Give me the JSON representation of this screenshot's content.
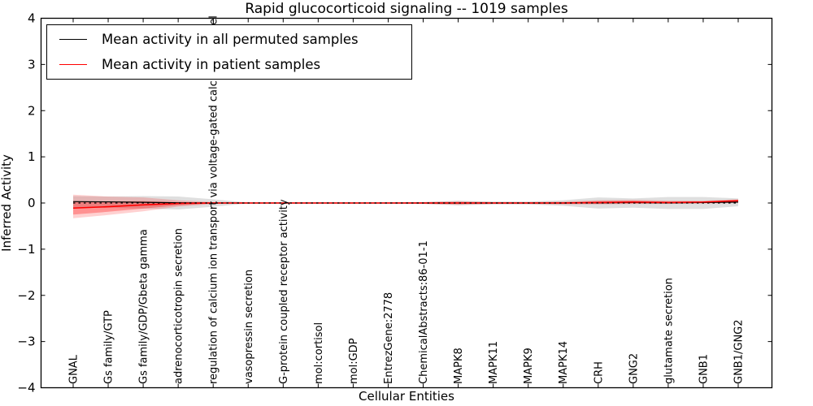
{
  "title": "Rapid glucocorticoid signaling -- 1019 samples",
  "legend": {
    "items": [
      {
        "label": "Mean activity in all permuted samples",
        "color": "#000000"
      },
      {
        "label": "Mean activity in patient samples",
        "color": "#ff0000"
      }
    ],
    "position": "upper left"
  },
  "chart_data": {
    "type": "line",
    "title": "Rapid glucocorticoid signaling -- 1019 samples",
    "xlabel": "Cellular Entities",
    "ylabel": "Inferred Activity",
    "ylim": [
      -4,
      4
    ],
    "grid": false,
    "legend_position": "upper left",
    "yticks": [
      {
        "value": -4,
        "label": "−4"
      },
      {
        "value": -3,
        "label": "−3"
      },
      {
        "value": -2,
        "label": "−2"
      },
      {
        "value": -1,
        "label": "−1"
      },
      {
        "value": 0,
        "label": "0"
      },
      {
        "value": 1,
        "label": "1"
      },
      {
        "value": 2,
        "label": "2"
      },
      {
        "value": 3,
        "label": "3"
      },
      {
        "value": 4,
        "label": "4"
      }
    ],
    "categories": [
      "GNAL",
      "Gs family/GTP",
      "Gs family/GDP/Gbeta gamma",
      "adrenocorticotropin secretion",
      "regulation of calcium ion transport via voltage-gated calcium channel",
      "vasopressin secretion",
      "G-protein coupled receptor activity",
      "mol:cortisol",
      "mol:GDP",
      "EntrezGene:2778",
      "ChemicalAbstracts:86-01-1",
      "MAPK8",
      "MAPK11",
      "MAPK9",
      "MAPK14",
      "CRH",
      "GNG2",
      "glutamate secretion",
      "GNB1",
      "GNB1/GNG2"
    ],
    "series": [
      {
        "name": "permuted-mean-line",
        "label": "Mean activity in all permuted samples",
        "color": "#000000",
        "width": 1.2,
        "values": [
          0.03,
          0.025,
          0.015,
          0.005,
          0,
          0,
          0,
          0,
          0,
          0,
          0,
          0,
          0,
          0,
          0,
          0.005,
          0.01,
          0.005,
          0.01,
          0.02
        ]
      },
      {
        "name": "patient-mean-line",
        "label": "Mean activity in patient samples",
        "color": "#ff0000",
        "width": 1.6,
        "values": [
          -0.11,
          -0.08,
          -0.04,
          -0.01,
          0,
          0,
          0,
          0,
          0,
          0,
          0,
          0,
          0,
          0,
          0,
          0.01,
          0.02,
          0.01,
          0.02,
          0.05
        ]
      }
    ],
    "bands": [
      {
        "name": "permuted-band",
        "color": "rgba(128,128,128,0.25)",
        "upper": [
          0.15,
          0.14,
          0.15,
          0.14,
          0.08,
          0.01,
          0.01,
          0.01,
          0.01,
          0.01,
          0.02,
          0.05,
          0.03,
          0.03,
          0.06,
          0.12,
          0.1,
          0.13,
          0.13,
          0.1
        ],
        "lower": [
          -0.1,
          -0.1,
          -0.12,
          -0.14,
          -0.08,
          -0.01,
          -0.01,
          -0.01,
          -0.01,
          -0.01,
          -0.02,
          -0.05,
          -0.03,
          -0.03,
          -0.06,
          -0.12,
          -0.1,
          -0.13,
          -0.13,
          -0.07
        ]
      },
      {
        "name": "patient-band-outer",
        "color": "rgba(255,0,0,0.18)",
        "upper": [
          0.18,
          0.14,
          0.12,
          0.06,
          0.02,
          0.01,
          0.01,
          0.01,
          0.01,
          0.01,
          0.02,
          0.04,
          0.02,
          0.02,
          0.03,
          0.06,
          0.07,
          0.05,
          0.05,
          0.08
        ],
        "lower": [
          -0.33,
          -0.26,
          -0.18,
          -0.08,
          -0.02,
          -0.01,
          -0.01,
          -0.01,
          -0.01,
          -0.01,
          -0.02,
          -0.04,
          -0.02,
          -0.02,
          -0.03,
          -0.03,
          -0.02,
          -0.02,
          -0.01,
          0.0
        ]
      },
      {
        "name": "patient-band-inner",
        "color": "rgba(255,0,0,0.30)",
        "upper": [
          0.04,
          0.03,
          0.04,
          0.02,
          0.01,
          0.005,
          0.005,
          0.005,
          0.005,
          0.005,
          0.01,
          0.02,
          0.01,
          0.01,
          0.015,
          0.04,
          0.045,
          0.03,
          0.035,
          0.065
        ],
        "lower": [
          -0.25,
          -0.19,
          -0.12,
          -0.05,
          -0.01,
          -0.005,
          -0.005,
          -0.005,
          -0.005,
          -0.005,
          -0.01,
          -0.02,
          -0.01,
          -0.01,
          -0.015,
          -0.015,
          -0.01,
          -0.01,
          0.0,
          0.02
        ]
      }
    ],
    "zero_line": {
      "style": "dashed",
      "color": "#000000"
    }
  }
}
